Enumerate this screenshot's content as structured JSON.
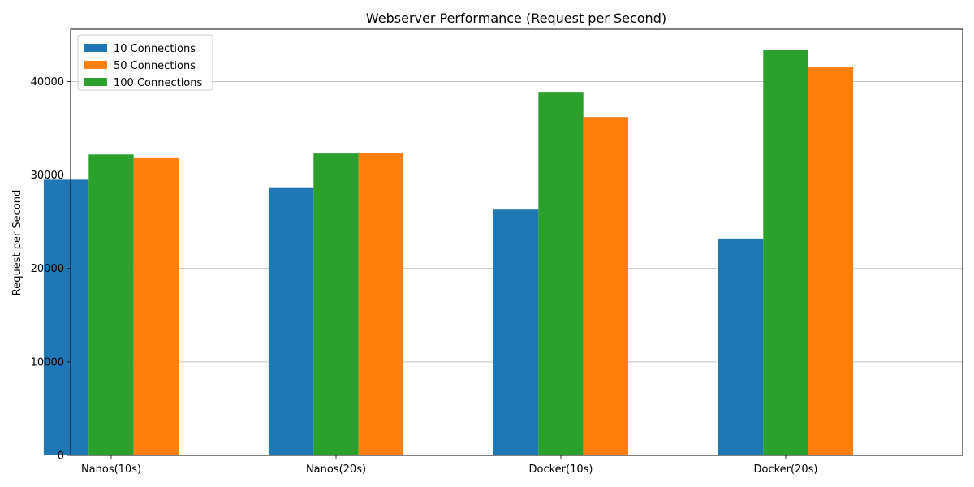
{
  "chart_data": {
    "type": "bar",
    "title": "Webserver Performance (Request per Second)",
    "xlabel": "",
    "ylabel": "Request per Second",
    "categories": [
      "Nanos(10s)",
      "Nanos(20s)",
      "Docker(10s)",
      "Docker(20s)"
    ],
    "ylim": [
      0,
      45600
    ],
    "yticks": [
      0,
      10000,
      20000,
      30000,
      40000
    ],
    "grid": "horizontal",
    "legend_position": "top-left",
    "series": [
      {
        "name": "10 Connections",
        "color": "#1f77b4",
        "values": [
          29500,
          28600,
          26300,
          23200
        ]
      },
      {
        "name": "100 Connections",
        "color": "#2ca02c",
        "values": [
          32200,
          32300,
          38900,
          43400
        ]
      },
      {
        "name": "50 Connections",
        "color": "#ff7f0e",
        "values": [
          31800,
          32400,
          36200,
          41600
        ]
      }
    ],
    "legend_order": [
      "10 Connections",
      "50 Connections",
      "100 Connections"
    ]
  }
}
